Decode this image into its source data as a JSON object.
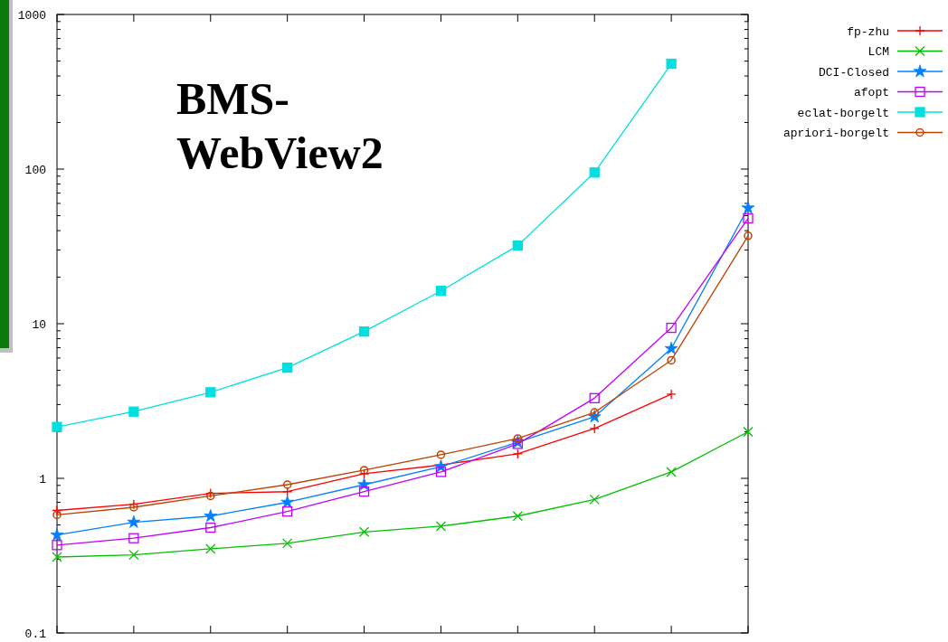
{
  "chart_data": {
    "type": "line",
    "title": "BMS-\nWebView2",
    "categories": [
      null,
      null,
      null,
      null,
      null,
      null,
      null,
      null,
      null,
      null
    ],
    "log": "y",
    "ylim": [
      0.1,
      1000
    ],
    "yticks": [
      0.1,
      1,
      10,
      100,
      1000
    ],
    "grid": false,
    "legend": "top right",
    "series": [
      {
        "name": "fp-zhu",
        "color": "#ff0000",
        "marker": "cross",
        "values": [
          0.62,
          0.68,
          0.8,
          0.82,
          1.07,
          1.22,
          1.44,
          2.1,
          3.5,
          null
        ]
      },
      {
        "name": "LCM",
        "color": "#00c000",
        "marker": "cross",
        "values": [
          0.31,
          0.32,
          0.35,
          0.38,
          0.45,
          0.49,
          0.57,
          0.73,
          1.1,
          2.0
        ]
      },
      {
        "name": "DCI-Closed",
        "color": "#0080ff",
        "marker": "star",
        "values": [
          0.43,
          0.52,
          0.57,
          0.7,
          0.91,
          1.19,
          1.71,
          2.5,
          6.9,
          56
        ]
      },
      {
        "name": "afopt",
        "color": "#c000ff",
        "marker": "square",
        "values": [
          0.37,
          0.41,
          0.48,
          0.61,
          0.82,
          1.1,
          1.67,
          3.3,
          9.4,
          48
        ]
      },
      {
        "name": "eclat-borgelt",
        "color": "#00e0e0",
        "marker": "square",
        "values": [
          2.15,
          2.7,
          3.6,
          5.2,
          8.9,
          16.3,
          32,
          95,
          480,
          null
        ]
      },
      {
        "name": "apriori-borgelt",
        "color": "#c04000",
        "marker": "circle",
        "values": [
          0.58,
          0.65,
          0.77,
          0.91,
          1.13,
          1.42,
          1.81,
          2.67,
          5.8,
          37
        ]
      }
    ]
  }
}
